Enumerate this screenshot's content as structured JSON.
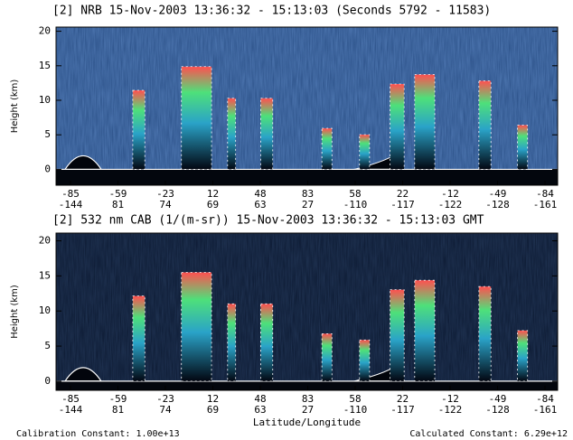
{
  "chart_data": [
    {
      "type": "curtain",
      "title": "[2]  NRB 15-Nov-2003 13:36:32 - 15:13:03 (Seconds 5792 - 11583)",
      "ylabel": "Height (km)",
      "ylim": [
        -2.3,
        20.6
      ],
      "yticks": [
        0,
        5,
        10,
        15,
        20
      ],
      "xtick_labels": [
        {
          "lat": -85,
          "lon": -144
        },
        {
          "lat": -59,
          "lon": 81
        },
        {
          "lat": -23,
          "lon": 74
        },
        {
          "lat": 12,
          "lon": 69
        },
        {
          "lat": 48,
          "lon": 63
        },
        {
          "lat": 83,
          "lon": 27
        },
        {
          "lat": 58,
          "lon": -110
        },
        {
          "lat": 22,
          "lon": -117
        },
        {
          "lat": -12,
          "lon": -122
        },
        {
          "lat": -49,
          "lon": -128
        },
        {
          "lat": -84,
          "lon": -161
        }
      ],
      "background": "#2a4f86"
    },
    {
      "type": "curtain",
      "title": "[2]  532 nm CAB (1/(m-sr)) 15-Nov-2003 13:36:32 - 15:13:03 GMT",
      "ylabel": "Height (km)",
      "xlabel": "Latitude/Longitude",
      "ylim": [
        -1.3,
        21.1
      ],
      "yticks": [
        0,
        5,
        10,
        15,
        20
      ],
      "xtick_labels": [
        {
          "lat": -85,
          "lon": -144
        },
        {
          "lat": -59,
          "lon": 81
        },
        {
          "lat": -23,
          "lon": 74
        },
        {
          "lat": 12,
          "lon": 69
        },
        {
          "lat": 48,
          "lon": 63
        },
        {
          "lat": 83,
          "lon": 27
        },
        {
          "lat": 58,
          "lon": -110
        },
        {
          "lat": 22,
          "lon": -117
        },
        {
          "lat": -12,
          "lon": -122
        },
        {
          "lat": -49,
          "lon": -128
        },
        {
          "lat": -84,
          "lon": -161
        }
      ],
      "background": "#0b1830",
      "annotations": [
        "Calibration Constant: 1.00e+13",
        "Calculated Constant: 6.29e+12"
      ]
    }
  ]
}
